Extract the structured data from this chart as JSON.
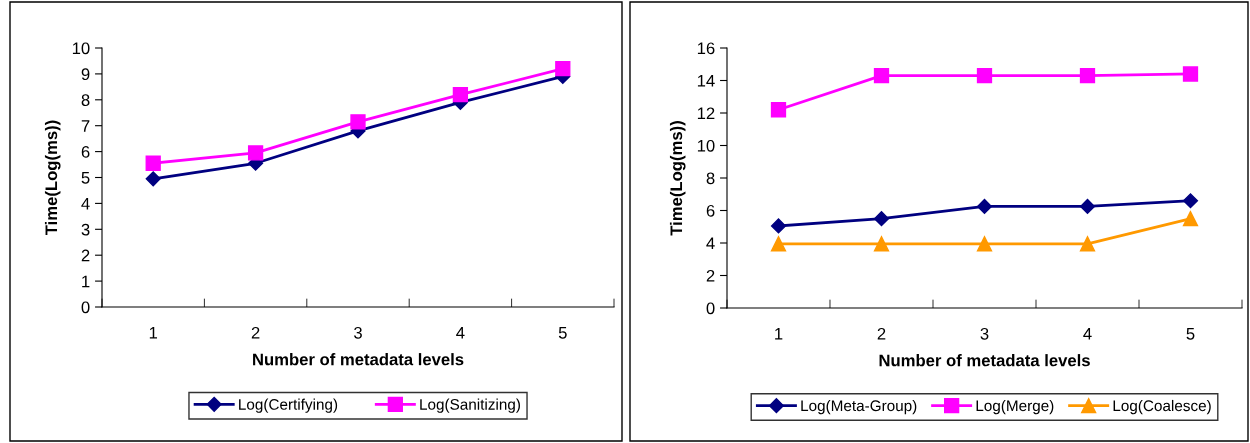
{
  "chart_data": [
    {
      "type": "line",
      "xlabel": "Number of metadata levels",
      "ylabel": "Time(Log(ms))",
      "categories": [
        "1",
        "2",
        "3",
        "4",
        "5"
      ],
      "ylim": [
        0,
        10
      ],
      "yticks": [
        0,
        1,
        2,
        3,
        4,
        5,
        6,
        7,
        8,
        9,
        10
      ],
      "grid": false,
      "legend": "bottom",
      "series": [
        {
          "name": "Log(Certifying)",
          "color": "#000080",
          "marker": "diamond",
          "values": [
            4.95,
            5.55,
            6.8,
            7.9,
            8.9
          ]
        },
        {
          "name": "Log(Sanitizing)",
          "color": "#ff00ff",
          "marker": "square",
          "values": [
            5.55,
            5.95,
            7.15,
            8.2,
            9.2
          ]
        }
      ]
    },
    {
      "type": "line",
      "xlabel": "Number of metadata levels",
      "ylabel": "Time(Log(ms))",
      "categories": [
        "1",
        "2",
        "3",
        "4",
        "5"
      ],
      "ylim": [
        0,
        16
      ],
      "yticks": [
        0,
        2,
        4,
        6,
        8,
        10,
        12,
        14,
        16
      ],
      "grid": false,
      "legend": "bottom",
      "series": [
        {
          "name": "Log(Meta-Group)",
          "color": "#000080",
          "marker": "diamond",
          "values": [
            5.05,
            5.5,
            6.25,
            6.25,
            6.6
          ]
        },
        {
          "name": "Log(Merge)",
          "color": "#ff00ff",
          "marker": "square",
          "values": [
            12.2,
            14.3,
            14.3,
            14.3,
            14.4
          ]
        },
        {
          "name": "Log(Coalesce)",
          "color": "#ff9900",
          "marker": "triangle",
          "values": [
            3.95,
            3.95,
            3.95,
            3.95,
            5.5
          ]
        }
      ]
    }
  ]
}
